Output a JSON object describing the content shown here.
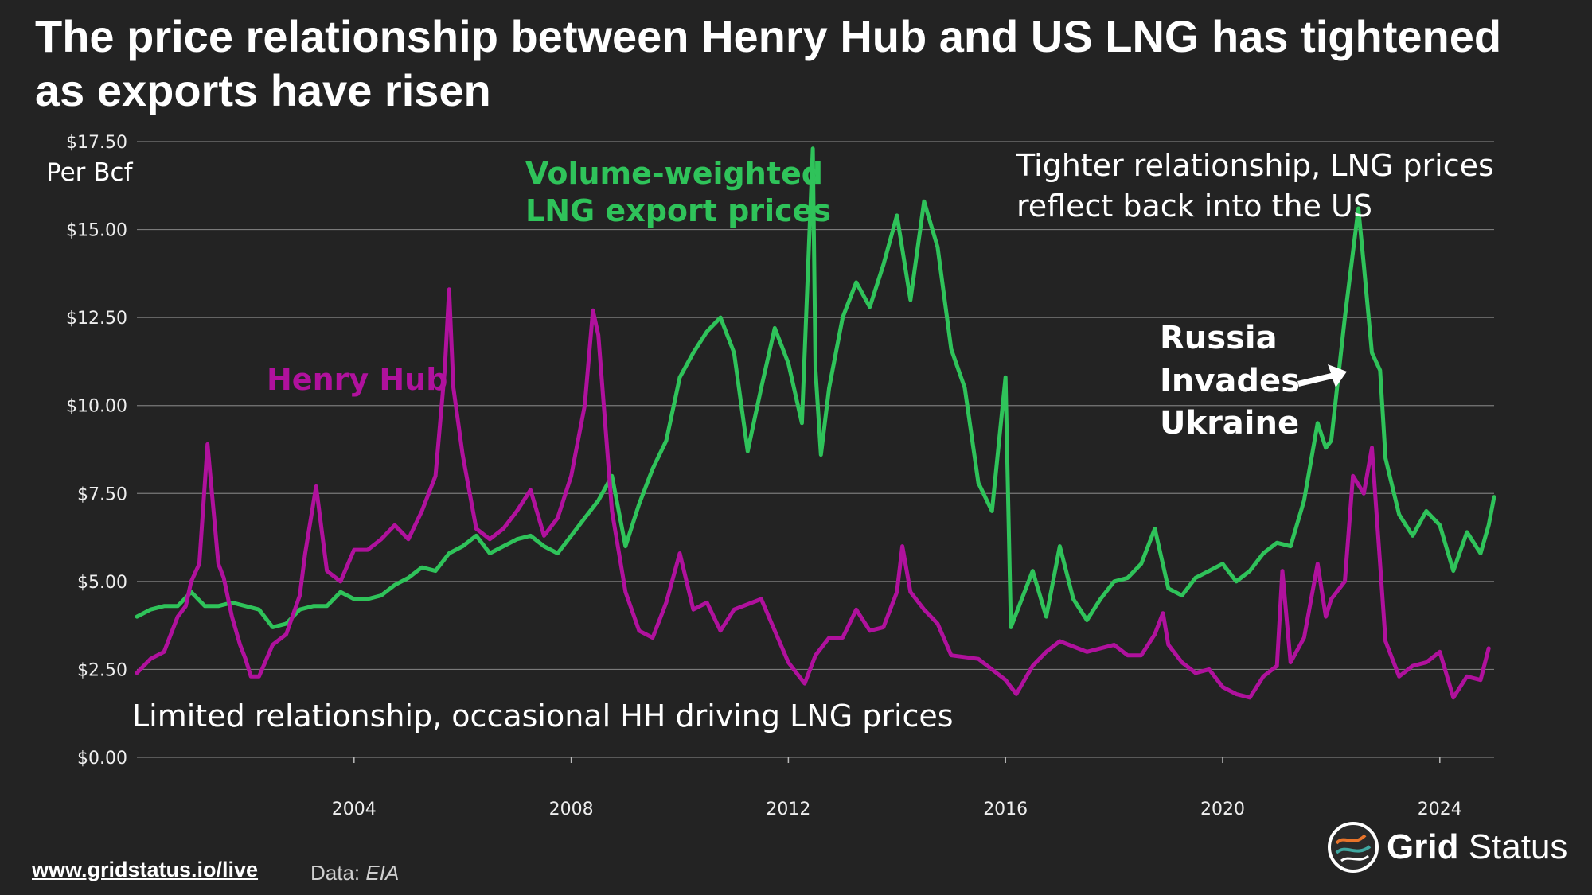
{
  "title": "The price relationship between Henry Hub and US LNG has tightened as exports have risen",
  "footer": {
    "link": "www.gridstatus.io/live",
    "source_label": "Data:",
    "source": "EIA",
    "brand_bold": "Grid",
    "brand_light": "Status"
  },
  "colors": {
    "background": "#232323",
    "henry_hub": "#b0119d",
    "lng": "#2fc35a",
    "grid": "#7a7a7a"
  },
  "chart_data": {
    "type": "line",
    "title": "The price relationship between Henry Hub and US LNG has tightened as exports have risen",
    "ylabel": "Per Bcf",
    "xlabel": "",
    "ylim": [
      0,
      17.5
    ],
    "xlim": [
      2000.0,
      2025.0
    ],
    "yticks": [
      0,
      2.5,
      5,
      7.5,
      10,
      12.5,
      15,
      17.5
    ],
    "ytick_labels": [
      "$0.00",
      "$2.50",
      "$5.00",
      "$7.50",
      "$10.00",
      "$12.50",
      "$15.00",
      "$17.50"
    ],
    "xticks": [
      2004,
      2008,
      2012,
      2016,
      2020,
      2024
    ],
    "xtick_labels": [
      "2004",
      "2008",
      "2012",
      "2016",
      "2020",
      "2024"
    ],
    "grid": true,
    "series": [
      {
        "name": "Henry Hub",
        "label": "Henry Hub",
        "color": "#b0119d",
        "x": [
          2000.0,
          2000.25,
          2000.5,
          2000.75,
          2000.9,
          2001.0,
          2001.15,
          2001.3,
          2001.5,
          2001.6,
          2001.75,
          2001.9,
          2002.0,
          2002.1,
          2002.25,
          2002.5,
          2002.75,
          2003.0,
          2003.1,
          2003.3,
          2003.5,
          2003.75,
          2004.0,
          2004.25,
          2004.5,
          2004.75,
          2005.0,
          2005.25,
          2005.5,
          2005.67,
          2005.75,
          2005.83,
          2006.0,
          2006.25,
          2006.5,
          2006.75,
          2007.0,
          2007.25,
          2007.5,
          2007.75,
          2008.0,
          2008.25,
          2008.4,
          2008.5,
          2008.75,
          2009.0,
          2009.25,
          2009.5,
          2009.75,
          2010.0,
          2010.25,
          2010.5,
          2010.75,
          2011.0,
          2011.5,
          2012.0,
          2012.3,
          2012.5,
          2012.75,
          2013.0,
          2013.25,
          2013.5,
          2013.75,
          2014.0,
          2014.1,
          2014.25,
          2014.5,
          2014.75,
          2015.0,
          2015.5,
          2016.0,
          2016.2,
          2016.5,
          2016.75,
          2017.0,
          2017.5,
          2018.0,
          2018.25,
          2018.5,
          2018.75,
          2018.9,
          2019.0,
          2019.25,
          2019.5,
          2019.75,
          2020.0,
          2020.25,
          2020.5,
          2020.75,
          2021.0,
          2021.1,
          2021.25,
          2021.5,
          2021.75,
          2021.9,
          2022.0,
          2022.25,
          2022.4,
          2022.6,
          2022.75,
          2022.9,
          2023.0,
          2023.25,
          2023.5,
          2023.75,
          2024.0,
          2024.25,
          2024.5,
          2024.75,
          2024.9
        ],
        "values": [
          2.4,
          2.8,
          3.0,
          4.0,
          4.3,
          5.0,
          5.5,
          8.9,
          5.5,
          5.1,
          4.0,
          3.2,
          2.8,
          2.3,
          2.3,
          3.2,
          3.5,
          4.6,
          5.8,
          7.7,
          5.3,
          5.0,
          5.9,
          5.9,
          6.2,
          6.6,
          6.2,
          7.0,
          8.0,
          11.0,
          13.3,
          10.5,
          8.6,
          6.5,
          6.2,
          6.5,
          7.0,
          7.6,
          6.3,
          6.8,
          8.0,
          10.0,
          12.7,
          12.0,
          7.0,
          4.7,
          3.6,
          3.4,
          4.4,
          5.8,
          4.2,
          4.4,
          3.6,
          4.2,
          4.5,
          2.7,
          2.1,
          2.9,
          3.4,
          3.4,
          4.2,
          3.6,
          3.7,
          4.7,
          6.0,
          4.7,
          4.2,
          3.8,
          2.9,
          2.8,
          2.2,
          1.8,
          2.6,
          3.0,
          3.3,
          3.0,
          3.2,
          2.9,
          2.9,
          3.5,
          4.1,
          3.2,
          2.7,
          2.4,
          2.5,
          2.0,
          1.8,
          1.7,
          2.3,
          2.6,
          5.3,
          2.7,
          3.4,
          5.5,
          4.0,
          4.5,
          5.0,
          8.0,
          7.5,
          8.8,
          5.5,
          3.3,
          2.3,
          2.6,
          2.7,
          3.0,
          1.7,
          2.3,
          2.2,
          3.1
        ]
      },
      {
        "name": "Volume-weighted LNG export prices",
        "label": "Volume-weighted\nLNG export prices",
        "color": "#2fc35a",
        "x": [
          2000.0,
          2000.25,
          2000.5,
          2000.75,
          2001.0,
          2001.25,
          2001.5,
          2001.75,
          2002.0,
          2002.25,
          2002.5,
          2002.75,
          2003.0,
          2003.25,
          2003.5,
          2003.75,
          2004.0,
          2004.25,
          2004.5,
          2004.75,
          2005.0,
          2005.25,
          2005.5,
          2005.75,
          2006.0,
          2006.25,
          2006.5,
          2006.75,
          2007.0,
          2007.25,
          2007.5,
          2007.75,
          2008.0,
          2008.25,
          2008.5,
          2008.75,
          2009.0,
          2009.25,
          2009.5,
          2009.75,
          2010.0,
          2010.25,
          2010.5,
          2010.75,
          2011.0,
          2011.25,
          2011.5,
          2011.75,
          2012.0,
          2012.25,
          2012.45,
          2012.5,
          2012.6,
          2012.75,
          2013.0,
          2013.25,
          2013.5,
          2013.75,
          2014.0,
          2014.25,
          2014.5,
          2014.75,
          2015.0,
          2015.25,
          2015.5,
          2015.75,
          2016.0,
          2016.1,
          2016.5,
          2016.75,
          2017.0,
          2017.25,
          2017.5,
          2017.75,
          2018.0,
          2018.25,
          2018.5,
          2018.75,
          2019.0,
          2019.25,
          2019.5,
          2019.75,
          2020.0,
          2020.25,
          2020.5,
          2020.75,
          2021.0,
          2021.25,
          2021.5,
          2021.75,
          2021.9,
          2022.0,
          2022.25,
          2022.5,
          2022.6,
          2022.75,
          2022.9,
          2023.0,
          2023.25,
          2023.5,
          2023.75,
          2024.0,
          2024.25,
          2024.5,
          2024.75,
          2024.9,
          2025.0
        ],
        "values": [
          4.0,
          4.2,
          4.3,
          4.3,
          4.7,
          4.3,
          4.3,
          4.4,
          4.3,
          4.2,
          3.7,
          3.8,
          4.2,
          4.3,
          4.3,
          4.7,
          4.5,
          4.5,
          4.6,
          4.9,
          5.1,
          5.4,
          5.3,
          5.8,
          6.0,
          6.3,
          5.8,
          6.0,
          6.2,
          6.3,
          6.0,
          5.8,
          6.3,
          6.8,
          7.3,
          8.0,
          6.0,
          7.2,
          8.2,
          9.0,
          10.8,
          11.5,
          12.1,
          12.5,
          11.5,
          8.7,
          10.5,
          12.2,
          11.2,
          9.5,
          17.3,
          11.0,
          8.6,
          10.5,
          12.5,
          13.5,
          12.8,
          14.0,
          15.4,
          13.0,
          15.8,
          14.5,
          11.6,
          10.5,
          7.8,
          7.0,
          10.8,
          3.7,
          5.3,
          4.0,
          6.0,
          4.5,
          3.9,
          4.5,
          5.0,
          5.1,
          5.5,
          6.5,
          4.8,
          4.6,
          5.1,
          5.3,
          5.5,
          5.0,
          5.3,
          5.8,
          6.1,
          6.0,
          7.3,
          9.5,
          8.8,
          9.0,
          12.5,
          15.6,
          14.0,
          11.5,
          11.0,
          8.5,
          6.9,
          6.3,
          7.0,
          6.6,
          5.3,
          6.4,
          5.8,
          6.6,
          7.4
        ]
      }
    ],
    "annotations": [
      {
        "text": "Henry Hub",
        "color": "#b0119d"
      },
      {
        "text": "Volume-weighted LNG export prices",
        "color": "#2fc35a"
      },
      {
        "text": "Tighter relationship, LNG prices reflect back into the US",
        "color": "#ffffff"
      },
      {
        "text": "Russia Invades Ukraine",
        "color": "#ffffff",
        "x": 2022.15
      },
      {
        "text": "Limited relationship, occasional HH driving LNG prices",
        "color": "#ffffff"
      }
    ]
  },
  "labels": {
    "ylabel": "Per Bcf",
    "henry_hub": "Henry Hub",
    "lng_line1": "Volume-weighted",
    "lng_line2": "LNG export prices",
    "tighter_line1": "Tighter relationship, LNG prices",
    "tighter_line2": "reflect back into the US",
    "russia_line1": "Russia",
    "russia_line2": "Invades",
    "russia_line3": "Ukraine",
    "limited": "Limited relationship, occasional HH driving LNG prices"
  }
}
